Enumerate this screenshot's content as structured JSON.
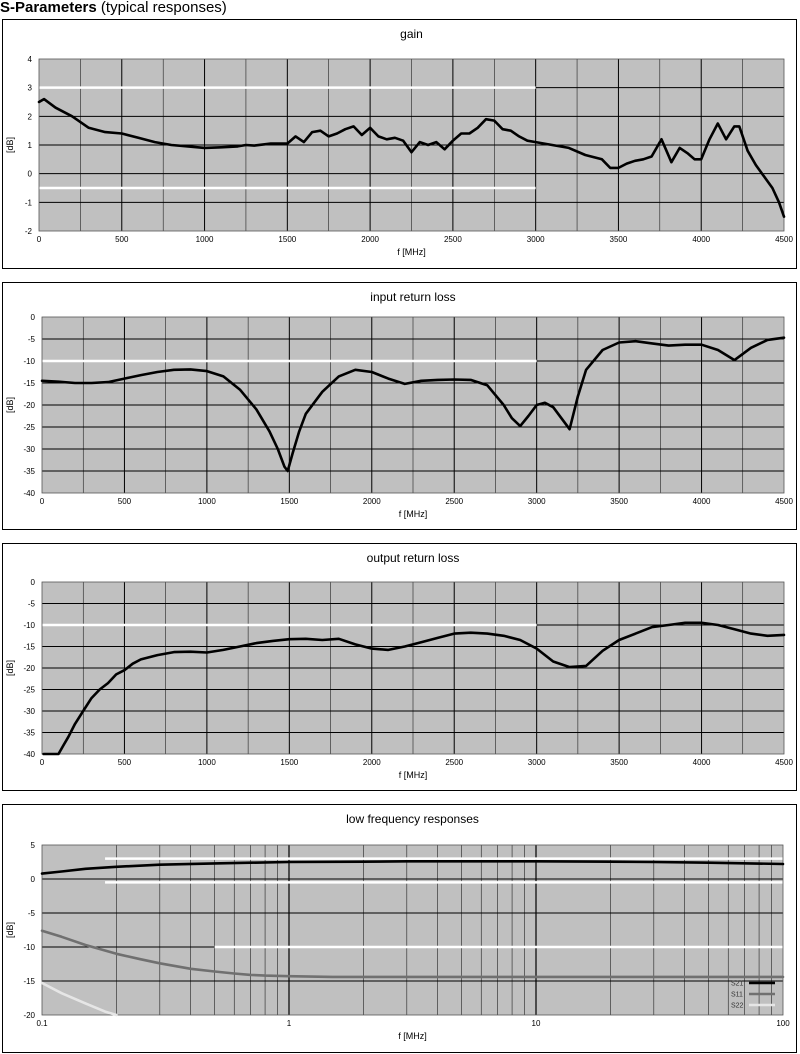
{
  "page": {
    "heading_bold": "S-Parameters",
    "heading_rest": "(typical responses)"
  },
  "chart_data": [
    {
      "type": "line",
      "title": "gain",
      "xlabel": "f [MHz]",
      "ylabel": "[dB]",
      "xlim": [
        0,
        4500
      ],
      "ylim": [
        -2,
        4
      ],
      "xticks": [
        0,
        500,
        1000,
        1500,
        2000,
        2500,
        3000,
        3500,
        4000,
        4500
      ],
      "yticks": [
        -2,
        -1,
        0,
        1,
        2,
        3,
        4
      ],
      "grid": true,
      "plot_background": "#c0c0c0",
      "line_color": "#000000",
      "series": [
        {
          "x": [
            0,
            30,
            100,
            200,
            300,
            400,
            500,
            600,
            700,
            800,
            900,
            1000,
            1100,
            1200,
            1250,
            1300,
            1400,
            1500,
            1550,
            1600,
            1650,
            1700,
            1750,
            1800,
            1850,
            1900,
            1950,
            2000,
            2050,
            2100,
            2150,
            2200,
            2250,
            2300,
            2350,
            2400,
            2450,
            2500,
            2550,
            2600,
            2650,
            2700,
            2750,
            2800,
            2850,
            2900,
            2950,
            3000,
            3100,
            3200,
            3300,
            3400,
            3450,
            3500,
            3550,
            3600,
            3650,
            3700,
            3760,
            3820,
            3870,
            3920,
            3960,
            4000,
            4050,
            4100,
            4150,
            4200,
            4230,
            4280,
            4330,
            4380,
            4430,
            4470,
            4500
          ],
          "y": [
            2.5,
            2.6,
            2.3,
            2.0,
            1.6,
            1.45,
            1.4,
            1.25,
            1.1,
            1.0,
            0.95,
            0.9,
            0.92,
            0.95,
            1.0,
            0.98,
            1.05,
            1.05,
            1.3,
            1.1,
            1.45,
            1.5,
            1.3,
            1.4,
            1.55,
            1.65,
            1.35,
            1.6,
            1.3,
            1.2,
            1.25,
            1.15,
            0.75,
            1.1,
            1.0,
            1.1,
            0.85,
            1.15,
            1.4,
            1.4,
            1.6,
            1.9,
            1.85,
            1.55,
            1.5,
            1.3,
            1.15,
            1.1,
            1.0,
            0.9,
            0.65,
            0.5,
            0.2,
            0.2,
            0.35,
            0.45,
            0.5,
            0.6,
            1.2,
            0.4,
            0.9,
            0.7,
            0.5,
            0.5,
            1.2,
            1.75,
            1.2,
            1.65,
            1.65,
            0.8,
            0.3,
            -0.1,
            -0.5,
            -1.0,
            -1.5
          ]
        }
      ],
      "markers": [
        {
          "y": 3.0,
          "x0": 0,
          "x1": 3000,
          "color": "#ffffff"
        },
        {
          "y": -0.5,
          "x0": 0,
          "x1": 3000,
          "color": "#ffffff"
        }
      ]
    },
    {
      "type": "line",
      "title": "input return loss",
      "xlabel": "f [MHz]",
      "ylabel": "[dB]",
      "xlim": [
        0,
        4500
      ],
      "ylim": [
        -40,
        0
      ],
      "xticks": [
        0,
        500,
        1000,
        1500,
        2000,
        2500,
        3000,
        3500,
        4000,
        4500
      ],
      "yticks": [
        -40,
        -35,
        -30,
        -25,
        -20,
        -15,
        -10,
        -5,
        0
      ],
      "grid": true,
      "plot_background": "#c0c0c0",
      "line_color": "#000000",
      "series": [
        {
          "x": [
            0,
            100,
            200,
            300,
            400,
            500,
            600,
            700,
            800,
            900,
            1000,
            1100,
            1200,
            1300,
            1380,
            1430,
            1470,
            1490,
            1520,
            1560,
            1600,
            1700,
            1800,
            1900,
            2000,
            2100,
            2200,
            2300,
            2400,
            2500,
            2600,
            2700,
            2800,
            2850,
            2900,
            2950,
            3000,
            3050,
            3100,
            3150,
            3200,
            3250,
            3300,
            3400,
            3500,
            3600,
            3700,
            3800,
            3900,
            4000,
            4100,
            4200,
            4300,
            4400,
            4500
          ],
          "y": [
            -14.5,
            -14.7,
            -15,
            -15,
            -14.8,
            -14,
            -13.2,
            -12.5,
            -12,
            -11.9,
            -12.3,
            -13.5,
            -16.5,
            -21,
            -26,
            -30,
            -34,
            -35,
            -31,
            -26,
            -22,
            -17,
            -13.5,
            -12,
            -12.5,
            -14,
            -15.2,
            -14.5,
            -14.3,
            -14.2,
            -14.3,
            -15.5,
            -20,
            -23,
            -24.8,
            -22.5,
            -20,
            -19.5,
            -20.5,
            -23,
            -25.5,
            -18,
            -12,
            -7.5,
            -5.8,
            -5.5,
            -6,
            -6.5,
            -6.3,
            -6.3,
            -7.5,
            -9.8,
            -7,
            -5.2,
            -4.7
          ]
        }
      ],
      "markers": [
        {
          "y": -10,
          "x0": 0,
          "x1": 3000,
          "color": "#ffffff"
        }
      ]
    },
    {
      "type": "line",
      "title": "output return loss",
      "xlabel": "f [MHz]",
      "ylabel": "[dB]",
      "xlim": [
        0,
        4500
      ],
      "ylim": [
        -40,
        0
      ],
      "xticks": [
        0,
        500,
        1000,
        1500,
        2000,
        2500,
        3000,
        3500,
        4000,
        4500
      ],
      "yticks": [
        -40,
        -35,
        -30,
        -25,
        -20,
        -15,
        -10,
        -5,
        0
      ],
      "grid": true,
      "plot_background": "#c0c0c0",
      "line_color": "#000000",
      "series": [
        {
          "x": [
            10,
            30,
            60,
            100,
            130,
            160,
            200,
            250,
            300,
            350,
            400,
            450,
            500,
            550,
            600,
            700,
            800,
            900,
            1000,
            1100,
            1200,
            1300,
            1400,
            1500,
            1600,
            1700,
            1800,
            1900,
            2000,
            2100,
            2200,
            2300,
            2400,
            2500,
            2600,
            2700,
            2800,
            2900,
            3000,
            3100,
            3200,
            3300,
            3400,
            3500,
            3600,
            3700,
            3800,
            3900,
            4000,
            4100,
            4200,
            4300,
            4400,
            4500
          ],
          "y": [
            -40,
            -40,
            -40,
            -40,
            -38,
            -36,
            -33,
            -30,
            -27,
            -25,
            -23.5,
            -21.5,
            -20.5,
            -19,
            -18,
            -17,
            -16.3,
            -16.2,
            -16.4,
            -15.8,
            -15,
            -14.2,
            -13.7,
            -13.3,
            -13.2,
            -13.5,
            -13.2,
            -14.5,
            -15.5,
            -15.8,
            -15,
            -14,
            -13,
            -12,
            -11.8,
            -12,
            -12.5,
            -13.5,
            -15.5,
            -18.5,
            -19.8,
            -19.5,
            -16,
            -13.5,
            -12,
            -10.5,
            -10,
            -9.5,
            -9.5,
            -10,
            -11,
            -12,
            -12.5,
            -12.3
          ]
        }
      ],
      "markers": [
        {
          "y": -10,
          "x0": 0,
          "x1": 3000,
          "color": "#ffffff"
        }
      ]
    },
    {
      "type": "line",
      "title": "low frequency responses",
      "xlabel": "f [MHz]",
      "ylabel": "[dB]",
      "xscale": "log",
      "xlim": [
        0.1,
        100
      ],
      "ylim": [
        -20,
        5
      ],
      "xticks": [
        0.1,
        1,
        10,
        100
      ],
      "xtick_labels": [
        "0.1",
        "1",
        "10",
        "100"
      ],
      "yticks": [
        -20,
        -15,
        -10,
        -5,
        0,
        5
      ],
      "grid": true,
      "legend": "bottom-right",
      "plot_background": "#c0c0c0",
      "series": [
        {
          "name": "S21",
          "color": "#000000",
          "x": [
            0.1,
            0.12,
            0.15,
            0.2,
            0.3,
            0.5,
            0.7,
            1,
            2,
            3,
            5,
            10,
            20,
            30,
            50,
            100
          ],
          "y": [
            0.8,
            1.1,
            1.5,
            1.8,
            2.1,
            2.3,
            2.4,
            2.5,
            2.55,
            2.6,
            2.6,
            2.6,
            2.55,
            2.5,
            2.4,
            2.2
          ]
        },
        {
          "name": "S11",
          "color": "#707070",
          "x": [
            0.1,
            0.12,
            0.15,
            0.2,
            0.25,
            0.3,
            0.4,
            0.5,
            0.6,
            0.7,
            0.8,
            1,
            1.5,
            2,
            5,
            10,
            20,
            50,
            100
          ],
          "y": [
            -7.6,
            -8.5,
            -9.7,
            -11,
            -11.8,
            -12.4,
            -13.2,
            -13.6,
            -13.9,
            -14.1,
            -14.2,
            -14.3,
            -14.4,
            -14.4,
            -14.4,
            -14.4,
            -14.4,
            -14.4,
            -14.4
          ]
        },
        {
          "name": "S22",
          "color": "#e6e6e6",
          "x": [
            0.1,
            0.12,
            0.15,
            0.18,
            0.2
          ],
          "y": [
            -15.3,
            -16.8,
            -18.3,
            -19.5,
            -20
          ]
        }
      ],
      "markers": [
        {
          "y": 3.0,
          "x0": 0.18,
          "x1": 100,
          "color": "#ffffff"
        },
        {
          "y": -0.5,
          "x0": 0.18,
          "x1": 100,
          "color": "#ffffff"
        },
        {
          "y": -10,
          "x0": 0.5,
          "x1": 100,
          "color": "#ffffff"
        }
      ]
    }
  ]
}
